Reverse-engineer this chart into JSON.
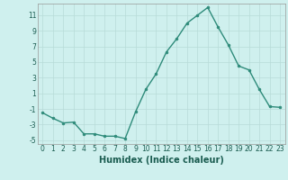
{
  "x": [
    0,
    1,
    2,
    3,
    4,
    5,
    6,
    7,
    8,
    9,
    10,
    11,
    12,
    13,
    14,
    15,
    16,
    17,
    18,
    19,
    20,
    21,
    22,
    23
  ],
  "y": [
    -1.5,
    -2.2,
    -2.8,
    -2.7,
    -4.2,
    -4.2,
    -4.5,
    -4.5,
    -4.8,
    -1.4,
    1.5,
    3.5,
    6.3,
    8.0,
    10.0,
    11.0,
    12.0,
    9.5,
    7.2,
    4.5,
    4.0,
    1.5,
    -0.7,
    -0.8
  ],
  "line_color": "#2e8b7a",
  "marker_color": "#2e8b7a",
  "bg_color": "#cff0ee",
  "grid_color": "#b8dbd8",
  "xlabel": "Humidex (Indice chaleur)",
  "xlim": [
    -0.5,
    23.5
  ],
  "ylim": [
    -5.5,
    12.5
  ],
  "yticks": [
    -5,
    -3,
    -1,
    1,
    3,
    5,
    7,
    9,
    11
  ],
  "xticks": [
    0,
    1,
    2,
    3,
    4,
    5,
    6,
    7,
    8,
    9,
    10,
    11,
    12,
    13,
    14,
    15,
    16,
    17,
    18,
    19,
    20,
    21,
    22,
    23
  ],
  "tick_fontsize": 5.5,
  "xlabel_fontsize": 7,
  "marker_size": 2.0,
  "line_width": 1.0
}
